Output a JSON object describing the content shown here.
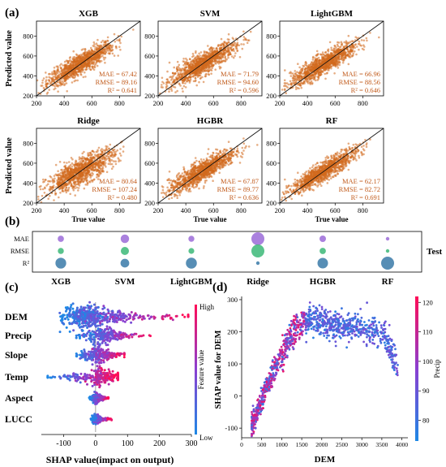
{
  "panels": {
    "a": "(a)",
    "b": "(b)",
    "c": "(c)",
    "d": "(d)"
  },
  "chart_data": [
    {
      "type": "scatter",
      "panel": "a",
      "xlabel": "True value",
      "ylabel": "Predicted  value",
      "xlim": [
        200,
        950
      ],
      "ylim": [
        200,
        950
      ],
      "xticks": [
        200,
        400,
        600,
        800
      ],
      "yticks": [
        200,
        400,
        600,
        800
      ],
      "reference_line": "y = x",
      "point_color": "#d2691e",
      "models": [
        {
          "name": "XGB",
          "mae": "MAE = 67.42",
          "rmse": "RMSE = 89.16",
          "r2": "R² = 0.641"
        },
        {
          "name": "SVM",
          "mae": "MAE = 71.79",
          "rmse": "RMSE = 94.60",
          "r2": "R² = 0.596"
        },
        {
          "name": "LightGBM",
          "mae": "MAE = 66.96",
          "rmse": "RMSE = 88.56",
          "r2": "R² = 0.646"
        },
        {
          "name": "Ridge",
          "mae": "MAE = 80.64",
          "rmse": "RMSE = 107.24",
          "r2": "R² = 0.480"
        },
        {
          "name": "HGBR",
          "mae": "MAE = 67.87",
          "rmse": "RMSE = 89.77",
          "r2": "R² = 0.636"
        },
        {
          "name": "RF",
          "mae": "MAE = 62.17",
          "rmse": "RMSE = 82.72",
          "r2": "R² = 0.691"
        }
      ]
    },
    {
      "type": "bubble",
      "panel": "b",
      "rows": [
        "MAE",
        "RMSE",
        "R²"
      ],
      "columns": [
        "XGB",
        "SVM",
        "LightGBM",
        "Ridge",
        "HGBR",
        "RF"
      ],
      "side_label": "Test",
      "row_colors": [
        "#9b6bd8",
        "#3cb878",
        "#3a7aa8"
      ],
      "values": {
        "MAE": [
          67.42,
          71.79,
          66.96,
          80.64,
          67.87,
          62.17
        ],
        "RMSE": [
          89.16,
          94.6,
          88.56,
          107.24,
          89.77,
          82.72
        ],
        "R²": [
          0.641,
          0.596,
          0.646,
          0.48,
          0.636,
          0.691
        ]
      }
    },
    {
      "type": "scatter",
      "subtype": "shap-beeswarm",
      "panel": "c",
      "features": [
        "DEM",
        "Precip",
        "Slope",
        "Temp",
        "Aspect",
        "LUCC"
      ],
      "xlabel": "SHAP value(impact on output)",
      "xticks": [
        -100,
        0,
        100,
        200,
        300
      ],
      "xlim": [
        -185,
        305
      ],
      "colorbar_label": "Feature value",
      "colorbar_high": "High",
      "colorbar_low": "Low",
      "color_low": "#1e88e5",
      "color_high": "#ff0d57"
    },
    {
      "type": "scatter",
      "subtype": "shap-dependence",
      "panel": "d",
      "xlabel": "DEM",
      "ylabel": "SHAP value for DEM",
      "xticks": [
        0,
        500,
        1000,
        1500,
        2000,
        2500,
        3000,
        3500,
        4000
      ],
      "yticks": [
        -100,
        0,
        100,
        200,
        300
      ],
      "xlim": [
        0,
        4150
      ],
      "ylim": [
        -130,
        310
      ],
      "colorbar_label": "Precip",
      "colorbar_ticks": [
        80,
        90,
        100,
        110,
        120
      ],
      "colorbar_range": [
        73,
        122
      ]
    }
  ]
}
